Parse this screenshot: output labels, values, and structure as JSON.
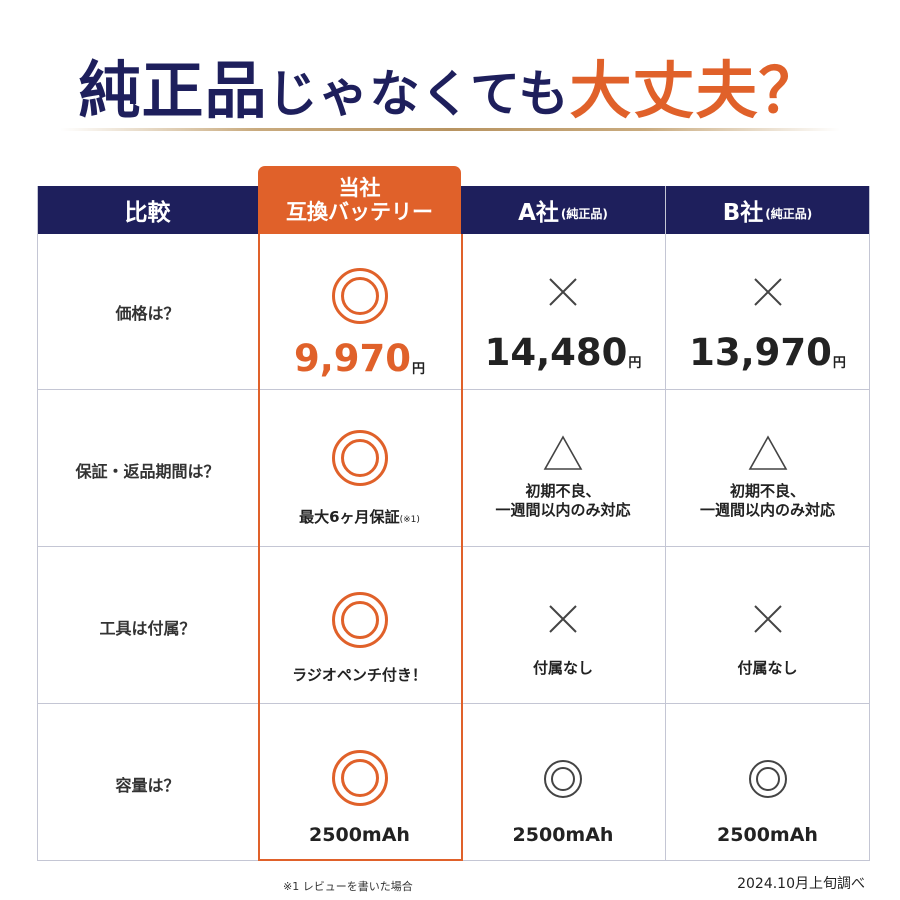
{
  "title": {
    "part1": "純正品",
    "part2": "じゃなくても",
    "part3": "大丈夫？"
  },
  "header": {
    "compare": "比較",
    "own_line1": "当社",
    "own_line2": "互換バッテリー",
    "a_main": "A社",
    "a_sub": "(純正品)",
    "b_main": "B社",
    "b_sub": "(純正品)"
  },
  "rows": {
    "price": {
      "label": "価格は？",
      "own_value": "9,970",
      "own_unit": "円",
      "a_value": "14,480",
      "a_unit": "円",
      "b_value": "13,970",
      "b_unit": "円"
    },
    "warranty": {
      "label": "保証・返品期間は？",
      "own_text": "最大6ヶ月保証",
      "own_note": "(※1)",
      "a_line1": "初期不良、",
      "a_line2": "一週間以内のみ対応",
      "b_line1": "初期不良、",
      "b_line2": "一週間以内のみ対応"
    },
    "tool": {
      "label": "工具は付属？",
      "own_text": "ラジオペンチ付き！",
      "a_text": "付属なし",
      "b_text": "付属なし"
    },
    "capacity": {
      "label": "容量は？",
      "own_text": "2500mAh",
      "a_text": "2500mAh",
      "b_text": "2500mAh"
    }
  },
  "marks": {
    "price": {
      "own": "double-circle-icon",
      "a": "cross-icon",
      "b": "cross-icon"
    },
    "warranty": {
      "own": "double-circle-icon",
      "a": "triangle-icon",
      "b": "triangle-icon"
    },
    "tool": {
      "own": "double-circle-icon",
      "a": "cross-icon",
      "b": "cross-icon"
    },
    "capacity": {
      "own": "double-circle-icon",
      "a": "double-circle-icon",
      "b": "double-circle-icon"
    }
  },
  "footnote": "※1 レビューを書いた場合",
  "survey_note": "2024.10月上旬調べ",
  "colors": {
    "navy": "#1e1f5c",
    "accent": "#e0612a",
    "grid": "#c4c6d4",
    "gold": "#b89461"
  }
}
